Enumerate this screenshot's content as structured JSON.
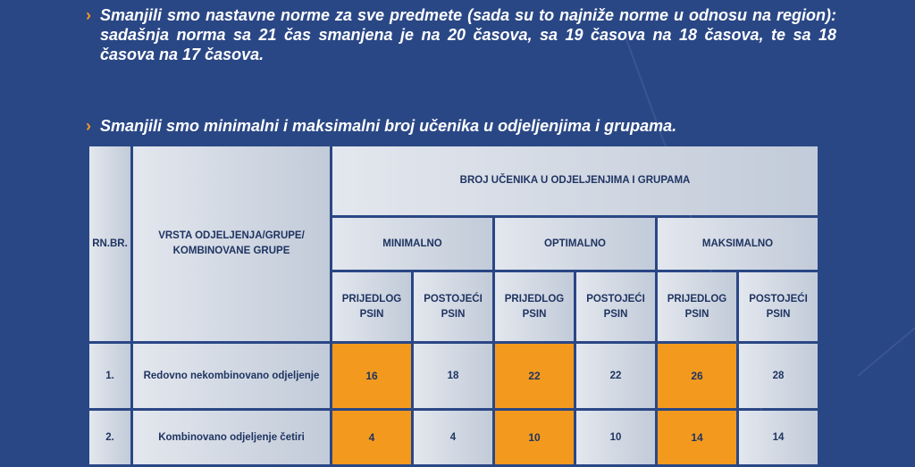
{
  "bullets": {
    "p1": "Smanjili smo nastavne norme za sve predmete (sada su to najniže norme u odnosu na region): sadašnja norma sa 21 čas smanjena je na 20 časova, sa 19 časova na 18 časova, te sa 18 časova na 17 časova.",
    "p2": "Smanjili smo minimalni i maksimalni broj učenika u odjeljenjima i grupama.",
    "arrow": "›"
  },
  "table": {
    "col_rn": "RN.BR.",
    "col_vrsta": "VRSTA ODJELJENJA/GRUPE/ KOMBINOVANE GRUPE",
    "group_header": "BROJ UČENIKA U ODJELJENJIMA I GRUPAMA",
    "groups": [
      "MINIMALNO",
      "OPTIMALNO",
      "MAKSIMALNO"
    ],
    "sub": [
      "PRIJEDLOG PSIN",
      "POSTOJEĆI PSIN",
      "PRIJEDLOG PSIN",
      "POSTOJEĆI PSIN",
      "PRIJEDLOG PSIN",
      "POSTOJEĆI PSIN"
    ],
    "rows": [
      {
        "rn": "1.",
        "vrsta": "Redovno nekombinovano odjeljenje",
        "vals": [
          "16",
          "18",
          "22",
          "22",
          "26",
          "28"
        ]
      },
      {
        "rn": "2.",
        "vrsta": "Kombinovano odjeljenje četiri",
        "vals": [
          "4",
          "4",
          "10",
          "10",
          "14",
          "14"
        ]
      }
    ]
  },
  "colors": {
    "background": "#2a4785",
    "accent": "#f39a1e",
    "cell_text": "#1f3461"
  }
}
